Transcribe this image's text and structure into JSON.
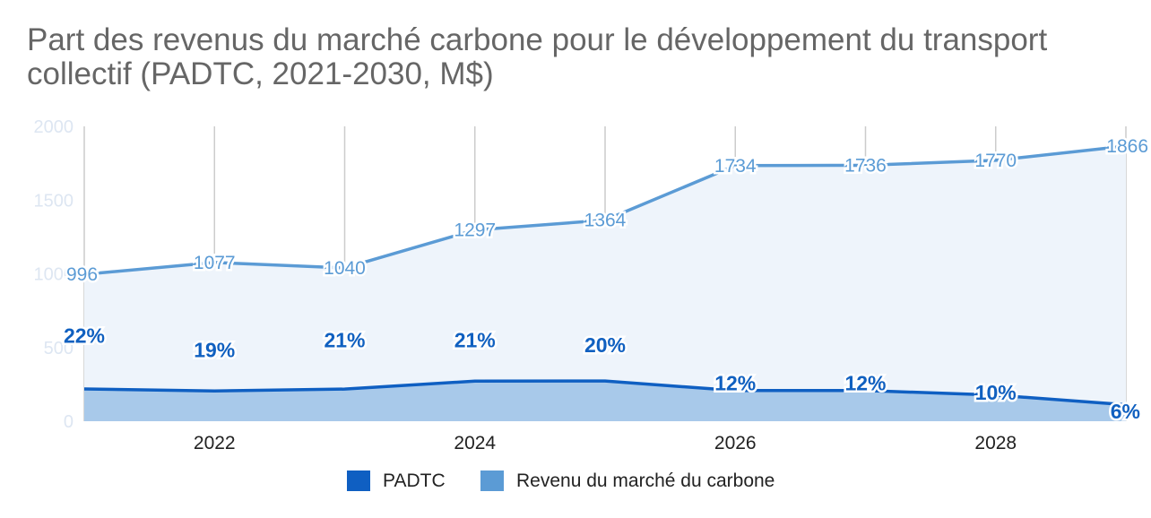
{
  "chart_data": {
    "type": "area",
    "title": "Part des revenus du marché carbone pour le développement du transport collectif (PADTC, 2021-2030, M$)",
    "x": [
      2021,
      2022,
      2023,
      2024,
      2025,
      2026,
      2027,
      2028,
      2029
    ],
    "x_tick_labels": [
      "2022",
      "2024",
      "2026",
      "2028"
    ],
    "y_tick_labels": [
      "0",
      "500",
      "1000",
      "1500",
      "2000"
    ],
    "ylim": [
      0,
      2000
    ],
    "grid": "vertical",
    "legend_position": "bottom",
    "series": [
      {
        "name": "PADTC",
        "color": "#0f5fc2",
        "values": [
          219,
          205,
          218,
          272,
          273,
          208,
          208,
          177,
          112
        ],
        "data_labels": [
          "22%",
          "19%",
          "21%",
          "21%",
          "20%",
          "12%",
          "12%",
          "10%",
          "6%"
        ]
      },
      {
        "name": "Revenu du marché du carbone",
        "color": "#5b9bd5",
        "values": [
          996,
          1077,
          1040,
          1297,
          1364,
          1734,
          1736,
          1770,
          1866
        ],
        "data_labels": [
          "996",
          "1077",
          "1040",
          "1297",
          "1364",
          "1734",
          "1736",
          "1770",
          "1866"
        ]
      }
    ]
  }
}
